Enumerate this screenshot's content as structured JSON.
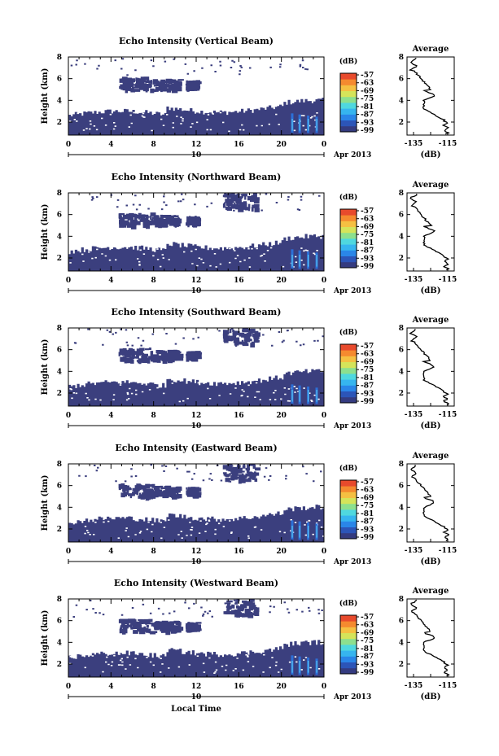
{
  "figure": {
    "xlabel_bottom": "Local Time",
    "colors": {
      "background_echo": "#3b3f7e",
      "colorbar": [
        "#343b80",
        "#2c55b8",
        "#2a86e8",
        "#36b5ef",
        "#4fd8df",
        "#8de08e",
        "#d5e45a",
        "#f5c042",
        "#f58a2f",
        "#e84a2c"
      ]
    }
  },
  "chart_data": [
    {
      "type": "heatmap",
      "title": "Echo Intensity (Vertical Beam)",
      "ylabel": "Height (km)",
      "x_ticks": [
        "0",
        "4",
        "8",
        "12",
        "16",
        "20",
        "0"
      ],
      "y_ticks": [
        "2",
        "4",
        "6",
        "8"
      ],
      "date_label": "10",
      "month_label": "Apr 2013",
      "xlim": [
        0,
        24
      ],
      "ylim": [
        0.8,
        8
      ],
      "colorbar": {
        "unit": "(dB)",
        "ticks": [
          "-57",
          "-63",
          "-69",
          "-75",
          "-81",
          "-87",
          "-93",
          "-99"
        ]
      },
      "profile": {
        "title": "Average",
        "xlabel": "(dB)",
        "x_ticks": [
          "-135",
          "-115"
        ],
        "y_ticks": [
          "2",
          "4",
          "6",
          "8"
        ]
      }
    },
    {
      "type": "heatmap",
      "title": "Echo Intensity (Northward Beam)",
      "ylabel": "Height (km)",
      "x_ticks": [
        "0",
        "4",
        "8",
        "12",
        "16",
        "20",
        "0"
      ],
      "y_ticks": [
        "2",
        "4",
        "6",
        "8"
      ],
      "date_label": "10",
      "month_label": "Apr 2013",
      "xlim": [
        0,
        24
      ],
      "ylim": [
        0.8,
        8
      ],
      "colorbar": {
        "unit": "(dB)",
        "ticks": [
          "-57",
          "-63",
          "-69",
          "-75",
          "-81",
          "-87",
          "-93",
          "-99"
        ]
      },
      "profile": {
        "title": "Average",
        "xlabel": "(dB)",
        "x_ticks": [
          "-135",
          "-115"
        ],
        "y_ticks": [
          "2",
          "4",
          "6",
          "8"
        ]
      }
    },
    {
      "type": "heatmap",
      "title": "Echo Intensity (Southward Beam)",
      "ylabel": "Height (km)",
      "x_ticks": [
        "0",
        "4",
        "8",
        "12",
        "16",
        "20",
        "0"
      ],
      "y_ticks": [
        "2",
        "4",
        "6",
        "8"
      ],
      "date_label": "10",
      "month_label": "Apr 2013",
      "xlim": [
        0,
        24
      ],
      "ylim": [
        0.8,
        8
      ],
      "colorbar": {
        "unit": "(dB)",
        "ticks": [
          "-57",
          "-63",
          "-69",
          "-75",
          "-81",
          "-87",
          "-93",
          "-99"
        ]
      },
      "profile": {
        "title": "Average",
        "xlabel": "(dB)",
        "x_ticks": [
          "-135",
          "-115"
        ],
        "y_ticks": [
          "2",
          "4",
          "6",
          "8"
        ]
      }
    },
    {
      "type": "heatmap",
      "title": "Echo Intensity (Eastward Beam)",
      "ylabel": "Height (km)",
      "x_ticks": [
        "0",
        "4",
        "8",
        "12",
        "16",
        "20",
        "0"
      ],
      "y_ticks": [
        "2",
        "4",
        "6",
        "8"
      ],
      "date_label": "10",
      "month_label": "Apr 2013",
      "xlim": [
        0,
        24
      ],
      "ylim": [
        0.8,
        8
      ],
      "colorbar": {
        "unit": "(dB)",
        "ticks": [
          "-57",
          "-63",
          "-69",
          "-75",
          "-81",
          "-87",
          "-93",
          "-99"
        ]
      },
      "profile": {
        "title": "Average",
        "xlabel": "(dB)",
        "x_ticks": [
          "-135",
          "-115"
        ],
        "y_ticks": [
          "2",
          "4",
          "6",
          "8"
        ]
      }
    },
    {
      "type": "heatmap",
      "title": "Echo Intensity (Westward Beam)",
      "ylabel": "Height (km)",
      "x_ticks": [
        "0",
        "4",
        "8",
        "12",
        "16",
        "20",
        "0"
      ],
      "y_ticks": [
        "2",
        "4",
        "6",
        "8"
      ],
      "date_label": "10",
      "month_label": "Apr 2013",
      "xlim": [
        0,
        24
      ],
      "ylim": [
        0.8,
        8
      ],
      "colorbar": {
        "unit": "(dB)",
        "ticks": [
          "-57",
          "-63",
          "-69",
          "-75",
          "-81",
          "-87",
          "-93",
          "-99"
        ]
      },
      "profile": {
        "title": "Average",
        "xlabel": "(dB)",
        "x_ticks": [
          "-135",
          "-115"
        ],
        "y_ticks": [
          "2",
          "4",
          "6",
          "8"
        ]
      }
    }
  ]
}
